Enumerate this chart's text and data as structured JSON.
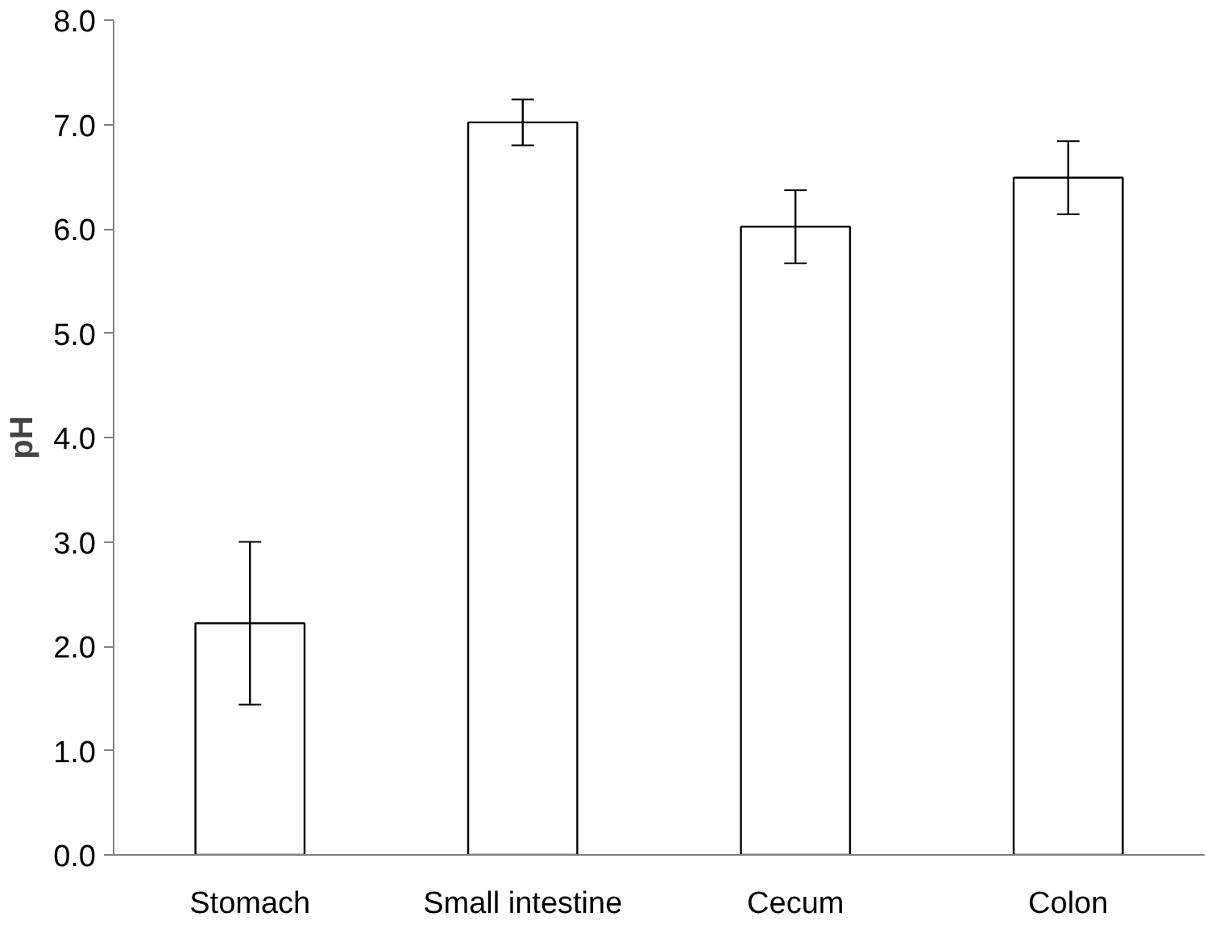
{
  "chart_data": {
    "type": "bar",
    "ylabel": "pH",
    "categories": [
      "Stomach",
      "Small intestine",
      "Cecum",
      "Colon"
    ],
    "values": [
      2.22,
      7.02,
      6.02,
      6.49
    ],
    "errors": [
      0.78,
      0.22,
      0.35,
      0.35
    ],
    "color": "#ffffff",
    "ylim": [
      0,
      8
    ],
    "yticks": [
      {
        "value": 0,
        "label": "0.0"
      },
      {
        "value": 1,
        "label": "1.0"
      },
      {
        "value": 2,
        "label": "2.0"
      },
      {
        "value": 3,
        "label": "3.0"
      },
      {
        "value": 4,
        "label": "4.0"
      },
      {
        "value": 5,
        "label": "5.0"
      },
      {
        "value": 6,
        "label": "6.0"
      },
      {
        "value": 7,
        "label": "7.0"
      },
      {
        "value": 8,
        "label": "8.0"
      }
    ],
    "grid": false
  }
}
